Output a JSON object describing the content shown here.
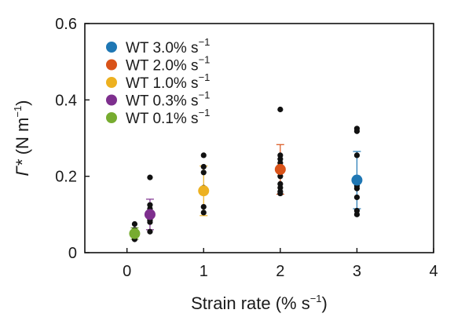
{
  "chart_data": {
    "type": "scatter",
    "title": "",
    "xlabel": {
      "main": "Strain rate (% s",
      "sup": "−1",
      "tail": ")"
    },
    "ylabel": {
      "main": "Γ* (N m",
      "sup": "−1",
      "tail": ")"
    },
    "xlim": [
      -0.55,
      4
    ],
    "ylim": [
      0,
      0.6
    ],
    "xticks": [
      0,
      1,
      2,
      3,
      4
    ],
    "xtick_labels": [
      "0",
      "1",
      "2",
      "3",
      "4"
    ],
    "yticks": [
      0,
      0.2,
      0.4,
      0.6
    ],
    "ytick_labels": [
      "0",
      "0.2",
      "0.4",
      "0.6"
    ],
    "grid": false,
    "legend_placement": "top-left",
    "colors": {
      "wt_3": "#1f77b4",
      "wt_2": "#d95319",
      "wt_1": "#edb120",
      "wt_03": "#7e2f8e",
      "wt_01": "#77ac30",
      "raw_points": "#111111"
    },
    "series": [
      {
        "name": "WT 3.0% s",
        "name_sup": "−1",
        "color_key": "wt_3",
        "x": 3.0,
        "mean": 0.19,
        "err": 0.075,
        "points": [
          0.325,
          0.318,
          0.255,
          0.188,
          0.175,
          0.168,
          0.145,
          0.11,
          0.1
        ]
      },
      {
        "name": "WT 2.0% s",
        "name_sup": "−1",
        "color_key": "wt_2",
        "x": 2.0,
        "mean": 0.218,
        "err": 0.065,
        "points": [
          0.375,
          0.255,
          0.245,
          0.235,
          0.22,
          0.21,
          0.2,
          0.18,
          0.17,
          0.16,
          0.155
        ]
      },
      {
        "name": "WT 1.0% s",
        "name_sup": "−1",
        "color_key": "wt_1",
        "x": 1.0,
        "mean": 0.162,
        "err": 0.065,
        "points": [
          0.255,
          0.225,
          0.21,
          0.17,
          0.16,
          0.12,
          0.105
        ]
      },
      {
        "name": "WT 0.3% s",
        "name_sup": "−1",
        "color_key": "wt_03",
        "x": 0.3,
        "mean": 0.1,
        "err": 0.04,
        "points": [
          0.197,
          0.125,
          0.115,
          0.095,
          0.085,
          0.08,
          0.055
        ]
      },
      {
        "name": "WT 0.1% s",
        "name_sup": "−1",
        "color_key": "wt_01",
        "x": 0.1,
        "mean": 0.05,
        "err": 0.015,
        "points": [
          0.075,
          0.06,
          0.05,
          0.045,
          0.04,
          0.035
        ]
      }
    ]
  }
}
